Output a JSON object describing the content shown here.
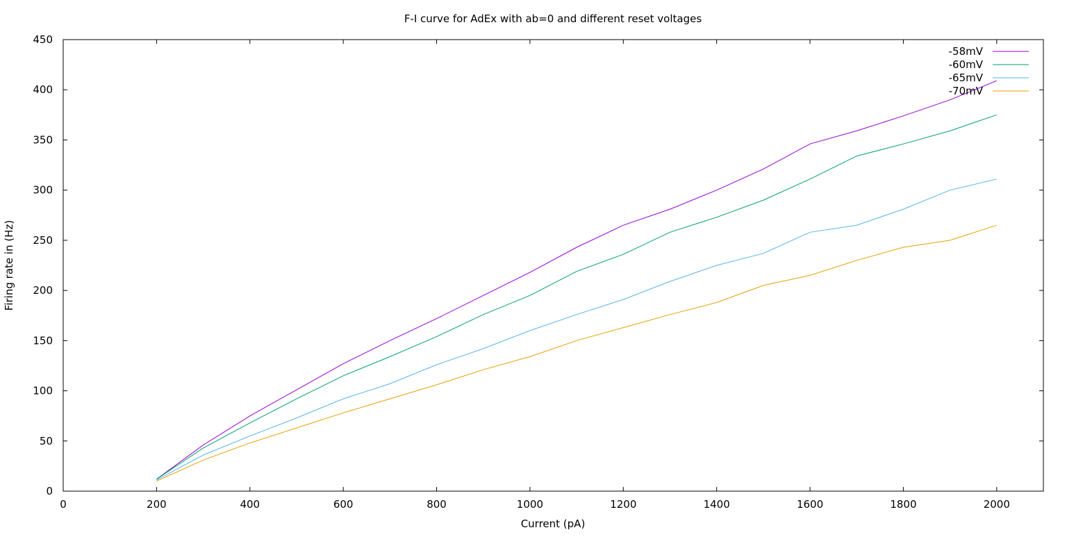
{
  "chart_data": {
    "type": "line",
    "title": "F-I curve for AdEx with ab=0 and different reset voltages",
    "xlabel": "Current (pA)",
    "ylabel": "Firing rate in (Hz)",
    "xlim": [
      0,
      2100
    ],
    "ylim": [
      0,
      450
    ],
    "xticks": [
      0,
      200,
      400,
      600,
      800,
      1000,
      1200,
      1400,
      1600,
      1800,
      2000
    ],
    "yticks": [
      0,
      50,
      100,
      150,
      200,
      250,
      300,
      350,
      400,
      450
    ],
    "grid": false,
    "legend_position": "top-right",
    "x": [
      200,
      300,
      400,
      500,
      600,
      700,
      800,
      900,
      1000,
      1100,
      1200,
      1300,
      1400,
      1500,
      1600,
      1700,
      1800,
      1900,
      2000
    ],
    "series": [
      {
        "name": "-58mV",
        "color": "#9400d3",
        "values": [
          12,
          46,
          75,
          101,
          127,
          150,
          172,
          195,
          218,
          243,
          265,
          281,
          300,
          321,
          346,
          359,
          374,
          390,
          409
        ]
      },
      {
        "name": "-60mV",
        "color": "#009e73",
        "values": [
          12,
          43,
          68,
          92,
          115,
          134,
          154,
          176,
          195,
          219,
          236,
          258,
          273,
          290,
          311,
          334,
          346,
          359,
          375
        ]
      },
      {
        "name": "-65mV",
        "color": "#56b4e9",
        "values": [
          11,
          36,
          55,
          73,
          92,
          107,
          126,
          142,
          160,
          176,
          191,
          209,
          225,
          237,
          258,
          265,
          281,
          300,
          311
        ]
      },
      {
        "name": "-70mV",
        "color": "#e69f00",
        "values": [
          10,
          31,
          48,
          63,
          78,
          92,
          106,
          121,
          134,
          150,
          163,
          176,
          188,
          205,
          215,
          230,
          243,
          250,
          265
        ]
      }
    ]
  }
}
